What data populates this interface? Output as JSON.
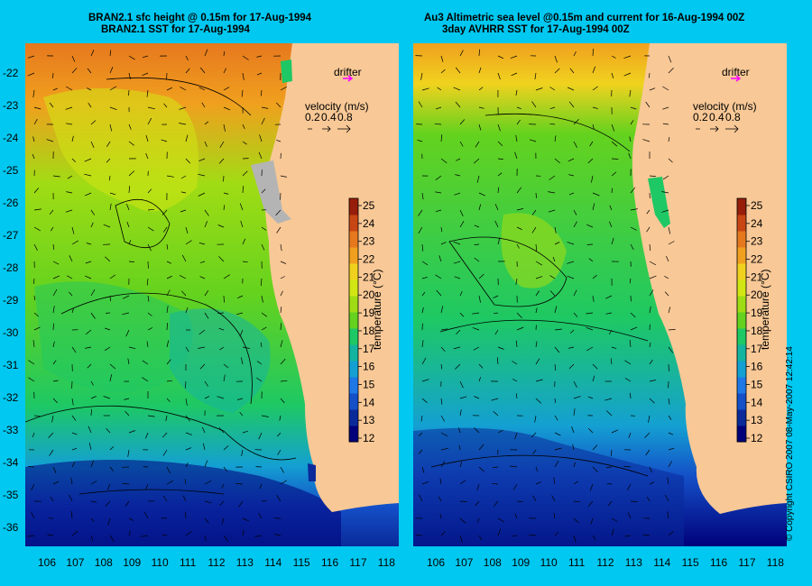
{
  "left_panel": {
    "title_line1": "BRAN2.1 sfc height @ 0.15m for 17-Aug-1994",
    "title_line2": "BRAN2.1 SST for 17-Aug-1994"
  },
  "right_panel": {
    "title_line1": "Au3 Altimetric sea level  @0.15m and current for 16-Aug-1994 00Z",
    "title_line2": "3day AVHRR SST for 17-Aug-1994 00Z"
  },
  "drifter_label": "drifter",
  "velocity_legend": {
    "title": "velocity (m/s)",
    "values": [
      "0.2",
      "0.4",
      "0.8"
    ]
  },
  "colorbar": {
    "label": "temperature (°C)",
    "ticks": [
      "12",
      "13",
      "14",
      "15",
      "16",
      "17",
      "18",
      "19",
      "20",
      "21",
      "22",
      "23",
      "24",
      "25"
    ],
    "colors": [
      "#00007a",
      "#0a2a9a",
      "#1450c8",
      "#1e78e6",
      "#14a0d2",
      "#14b4a0",
      "#1ec864",
      "#64d21e",
      "#a0dc14",
      "#d2e614",
      "#f0d21e",
      "#f0a01e",
      "#e6781e",
      "#c84614",
      "#961e0a"
    ]
  },
  "axes": {
    "x_ticks": [
      "106",
      "107",
      "108",
      "109",
      "110",
      "111",
      "112",
      "113",
      "114",
      "115",
      "116",
      "117",
      "118"
    ],
    "y_ticks": [
      "-22",
      "-23",
      "-24",
      "-25",
      "-26",
      "-27",
      "-28",
      "-29",
      "-30",
      "-31",
      "-32",
      "-33",
      "-34",
      "-35",
      "-36"
    ]
  },
  "colors": {
    "background": "#00c8f0",
    "land": "#f8c896",
    "drifter": "#ff00ff",
    "no_data": "#b4b4b4"
  },
  "copyright": "© Copyright CSIRO 2007    08-May-2007 12:42:14"
}
